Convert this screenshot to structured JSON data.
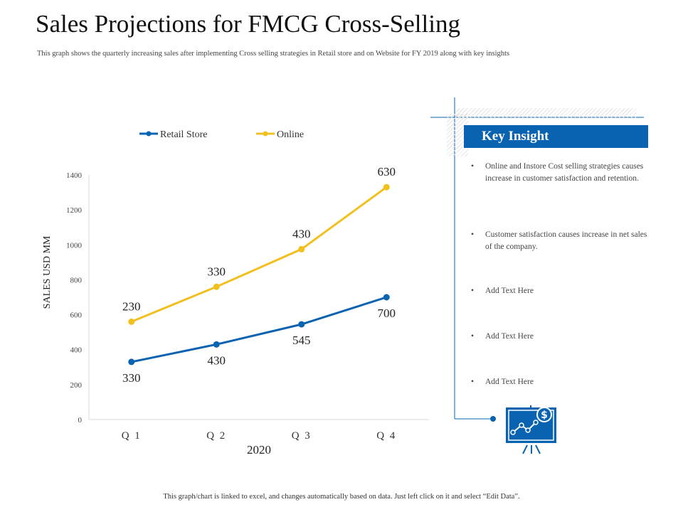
{
  "page": {
    "title": "Sales Projections for FMCG Cross-Selling",
    "subtitle": "This graph shows the quarterly increasing sales after implementing Cross selling strategies in Retail store and on Website for FY 2019 along with key insights",
    "footer": "This graph/chart is linked to excel, and changes automatically based on data. Just left click on it and select “Edit Data”."
  },
  "colors": {
    "retail": "#0a63b0",
    "online": "#f2c01e",
    "accent": "#0a63b0"
  },
  "chart_data": {
    "type": "line",
    "categories": [
      "Q 1",
      "Q 2",
      "Q 3",
      "Q 4"
    ],
    "xlabel": "2020",
    "ylabel": "SALES USD MM",
    "ylim": [
      0,
      1400
    ],
    "yticks": [
      0,
      200,
      400,
      600,
      800,
      1000,
      1200,
      1400
    ],
    "legend_position": "top",
    "series": [
      {
        "name": "Retail Store",
        "values": [
          330,
          430,
          545,
          700
        ],
        "labels": [
          "330",
          "430",
          "545",
          "700"
        ]
      },
      {
        "name": "Online",
        "values": [
          560,
          760,
          975,
          1330
        ],
        "labels": [
          "230",
          "330",
          "430",
          "630"
        ]
      }
    ]
  },
  "insight": {
    "header": "Key Insight",
    "items": [
      "Online and Instore Cost selling strategies causes increase in customer satisfaction and retention.",
      "Customer satisfaction causes increase in net sales of the company.",
      "Add Text Here",
      "Add Text Here",
      "Add Text Here"
    ],
    "bullet": "•",
    "icon_symbol": "$"
  }
}
